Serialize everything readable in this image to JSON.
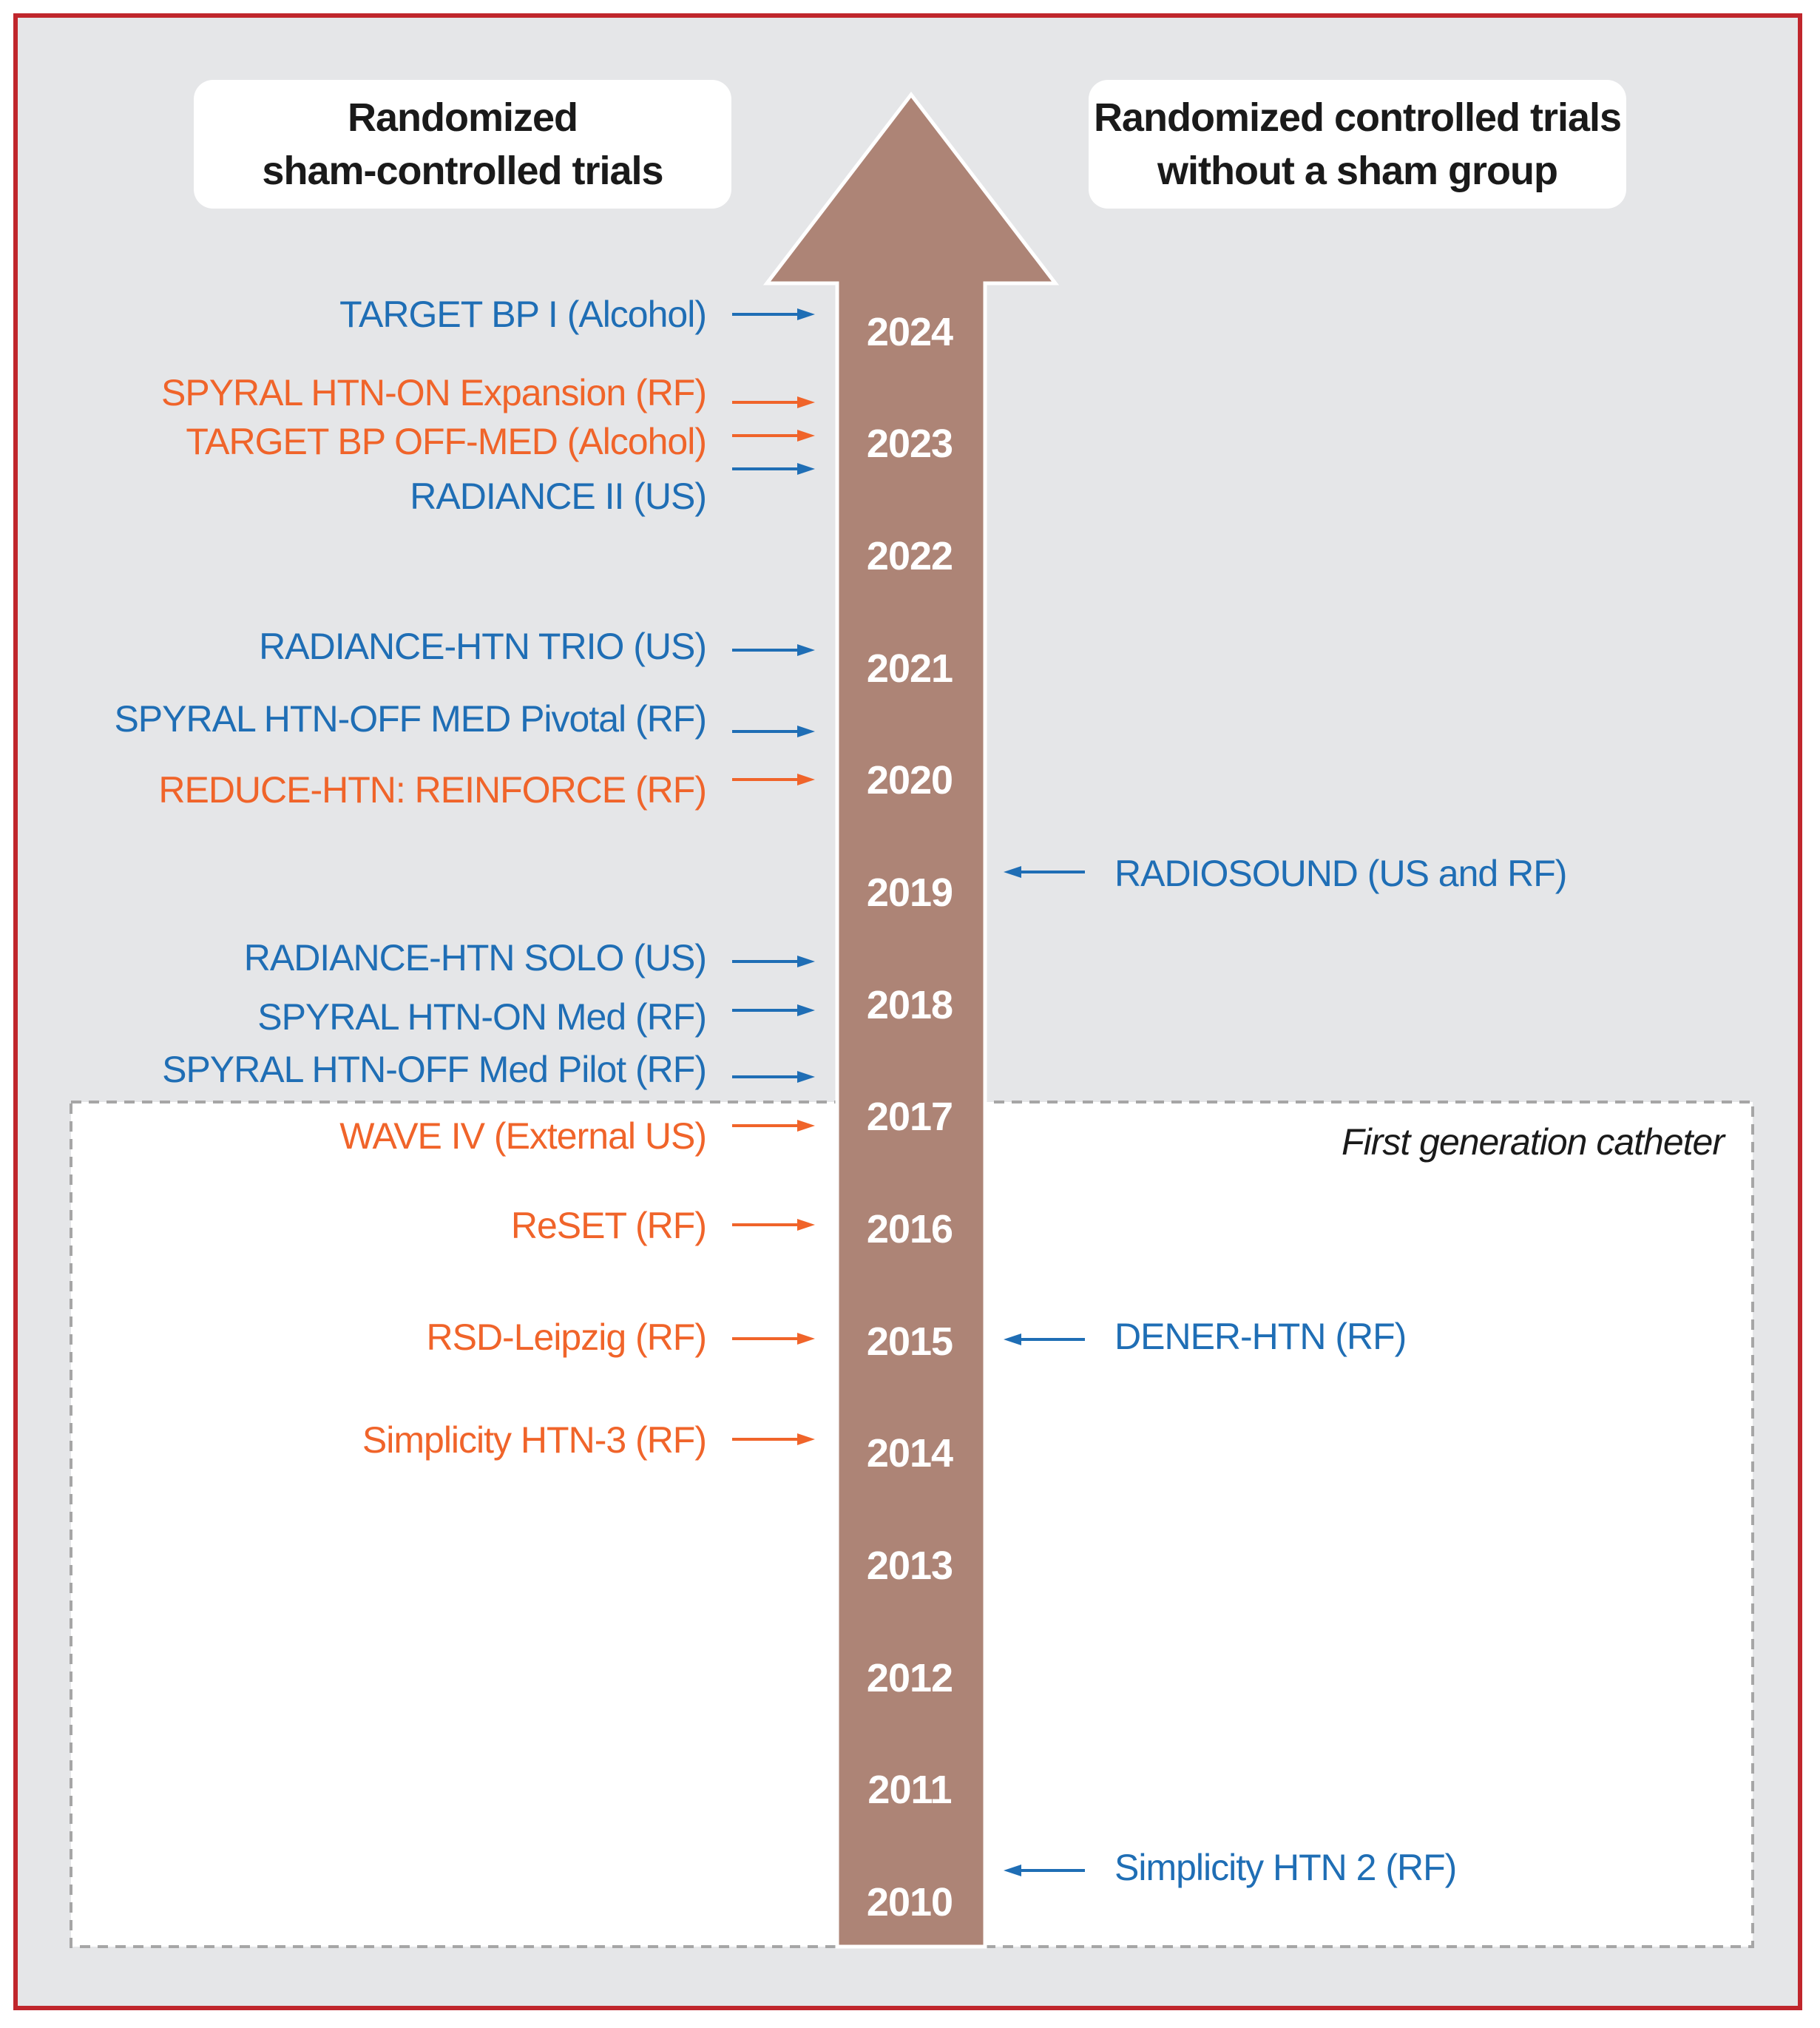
{
  "headers": {
    "left": "Randomized\nsham-controlled trials",
    "right": "Randomized controlled trials\nwithout a sham group"
  },
  "years": [
    "2024",
    "2023",
    "2022",
    "2021",
    "2020",
    "2019",
    "2018",
    "2017",
    "2016",
    "2015",
    "2014",
    "2013",
    "2012",
    "2011",
    "2010"
  ],
  "first_generation_label": "First generation catheter",
  "left_trials": [
    {
      "label": "TARGET BP I (Alcohol)",
      "color": "blue"
    },
    {
      "label": "SPYRAL HTN-ON Expansion (RF)",
      "color": "orange"
    },
    {
      "label": "TARGET BP OFF-MED (Alcohol)",
      "color": "orange"
    },
    {
      "label": "RADIANCE II (US)",
      "color": "blue"
    },
    {
      "label": "RADIANCE-HTN TRIO (US)",
      "color": "blue"
    },
    {
      "label": "SPYRAL HTN-OFF MED Pivotal (RF)",
      "color": "blue"
    },
    {
      "label": "REDUCE-HTN: REINFORCE (RF)",
      "color": "orange"
    },
    {
      "label": "RADIANCE-HTN SOLO (US)",
      "color": "blue"
    },
    {
      "label": "SPYRAL HTN-ON Med (RF)",
      "color": "blue"
    },
    {
      "label": "SPYRAL HTN-OFF Med Pilot (RF)",
      "color": "blue"
    },
    {
      "label": "WAVE IV (External US)",
      "color": "orange"
    },
    {
      "label": "ReSET (RF)",
      "color": "orange"
    },
    {
      "label": "RSD-Leipzig (RF)",
      "color": "orange"
    },
    {
      "label": "Simplicity HTN-3 (RF)",
      "color": "orange"
    }
  ],
  "right_trials": [
    {
      "label": "RADIOSOUND (US and RF)",
      "color": "blue"
    },
    {
      "label": "DENER-HTN (RF)",
      "color": "blue"
    },
    {
      "label": "Simplicity HTN 2 (RF)",
      "color": "blue"
    }
  ],
  "colors": {
    "arrow": "#ad8476",
    "blue": "#1f6eb5",
    "orange": "#f0642a",
    "frame_border": "#c0262c",
    "background": "#e5e6e8"
  }
}
